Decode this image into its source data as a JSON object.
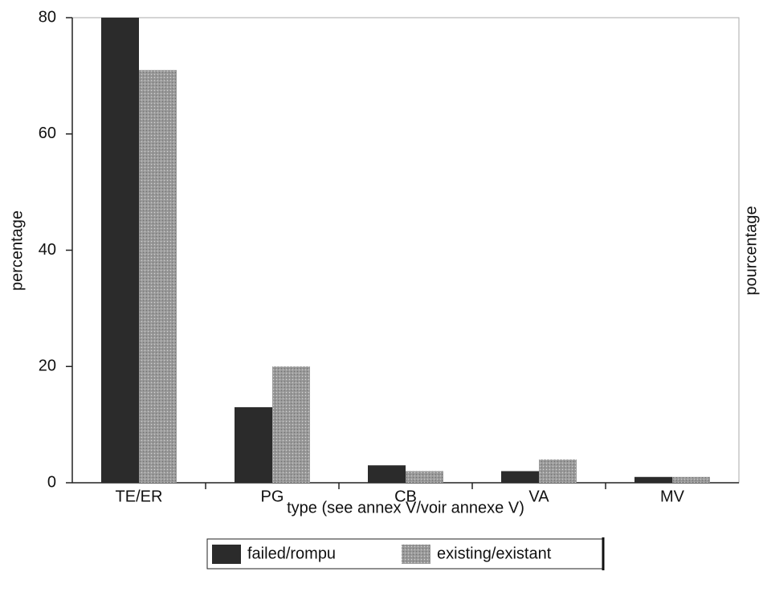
{
  "chart_data": {
    "type": "bar",
    "categories": [
      "TE/ER",
      "PG",
      "CB",
      "VA",
      "MV"
    ],
    "series": [
      {
        "name": "failed/rompu",
        "color": "#2b2b2b",
        "values": [
          80,
          13,
          3,
          2,
          1
        ]
      },
      {
        "name": "existing/existant",
        "color": "#9a9a9a",
        "values": [
          71,
          20,
          2,
          4,
          1
        ]
      }
    ],
    "ylabel": "percentage",
    "y2label": "pourcentage",
    "xlabel": "type (see annex V/voir annexe V)",
    "ylim": [
      0,
      80
    ],
    "yticks": [
      0,
      20,
      40,
      60,
      80
    ],
    "grid": false,
    "legend": "bottom"
  }
}
